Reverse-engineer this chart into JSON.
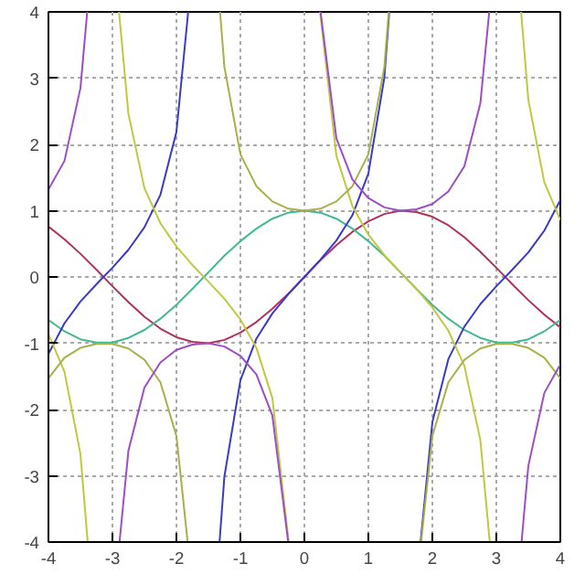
{
  "chart_data": {
    "type": "line",
    "xlim": [
      -4,
      4
    ],
    "ylim": [
      -4,
      4
    ],
    "xticks": [
      -4,
      -3,
      -2,
      -1,
      0,
      1,
      2,
      3,
      4
    ],
    "yticks": [
      -4,
      -3,
      -2,
      -1,
      0,
      1,
      2,
      3,
      4
    ],
    "grid": true,
    "line_style": "solid",
    "marker": "none",
    "series": [
      {
        "color": "#b03060",
        "x": [
          -4,
          -3.75,
          -3.5,
          -3.25,
          -3,
          -2.75,
          -2.5,
          -2.25,
          -2,
          -1.75,
          -1.5,
          -1.25,
          -1,
          -0.75,
          -0.5,
          -0.25,
          0,
          0.25,
          0.5,
          0.75,
          1,
          1.25,
          1.5,
          1.75,
          2,
          2.25,
          2.5,
          2.75,
          3,
          3.25,
          3.5,
          3.75,
          4
        ],
        "values": [
          0.76,
          0.57,
          0.35,
          0.11,
          -0.14,
          -0.38,
          -0.6,
          -0.78,
          -0.91,
          -0.98,
          -1.0,
          -0.95,
          -0.84,
          -0.68,
          -0.48,
          -0.25,
          0,
          0.25,
          0.48,
          0.68,
          0.84,
          0.95,
          1.0,
          0.98,
          0.91,
          0.78,
          0.6,
          0.38,
          0.14,
          -0.11,
          -0.35,
          -0.57,
          -0.76
        ]
      },
      {
        "color": "#40b890",
        "x": [
          -4,
          -3.75,
          -3.5,
          -3.25,
          -3,
          -2.75,
          -2.5,
          -2.25,
          -2,
          -1.75,
          -1.5,
          -1.25,
          -1,
          -0.75,
          -0.5,
          -0.25,
          0,
          0.25,
          0.5,
          0.75,
          1,
          1.25,
          1.5,
          1.75,
          2,
          2.25,
          2.5,
          2.75,
          3,
          3.25,
          3.5,
          3.75,
          4
        ],
        "values": [
          -0.65,
          -0.82,
          -0.94,
          -0.99,
          -0.99,
          -0.92,
          -0.8,
          -0.63,
          -0.42,
          -0.18,
          0.07,
          0.32,
          0.54,
          0.73,
          0.88,
          0.97,
          1,
          0.97,
          0.88,
          0.73,
          0.54,
          0.32,
          0.07,
          -0.18,
          -0.42,
          -0.63,
          -0.8,
          -0.92,
          -0.99,
          -0.99,
          -0.94,
          -0.82,
          -0.65
        ]
      },
      {
        "color": "#3a3ac8",
        "x": [
          -4,
          -3.75,
          -3.5,
          -3.25,
          -3,
          -2.75,
          -2.5,
          -2.25,
          -2,
          -1.816,
          -1.57,
          -1.326,
          -1.25,
          -1,
          -0.75,
          -0.5,
          -0.25,
          0,
          0.25,
          0.5,
          0.75,
          1,
          1.25,
          1.326,
          1.57,
          1.816,
          2,
          2.25,
          2.5,
          2.75,
          3,
          3.25,
          3.5,
          3.75,
          4
        ],
        "values": [
          -1.16,
          -0.7,
          -0.37,
          -0.11,
          0.14,
          0.41,
          0.75,
          1.24,
          2.19,
          4,
          null,
          -4,
          -3.01,
          -1.56,
          -0.93,
          -0.55,
          -0.26,
          0,
          0.26,
          0.55,
          0.93,
          1.56,
          3.01,
          4,
          null,
          -4,
          -2.19,
          -1.24,
          -0.75,
          -0.41,
          -0.14,
          0.11,
          0.37,
          0.7,
          1.16
        ]
      },
      {
        "color": "#c0c840",
        "x": [
          -4,
          -3.75,
          -3.5,
          -3.387,
          -3.14,
          -2.897,
          -2.75,
          -2.5,
          -2.25,
          -2,
          -1.75,
          -1.5,
          -1.25,
          -1,
          -0.75,
          -0.5,
          -0.245,
          0,
          0.245,
          0.5,
          0.75,
          1,
          1.25,
          1.5,
          1.75,
          2,
          2.25,
          2.5,
          2.75,
          2.897,
          3.14,
          3.387,
          3.5,
          3.75,
          4
        ],
        "values": [
          -0.86,
          -1.43,
          -2.67,
          -4,
          null,
          4,
          2.46,
          1.34,
          0.81,
          0.46,
          0.18,
          -0.07,
          -0.33,
          -0.64,
          -1.07,
          -1.83,
          -4,
          null,
          4,
          1.83,
          1.07,
          0.64,
          0.33,
          0.07,
          -0.18,
          -0.46,
          -0.81,
          -1.34,
          -2.46,
          -4,
          null,
          4,
          2.67,
          1.43,
          0.86
        ]
      },
      {
        "color": "#a8b048",
        "x": [
          -4,
          -3.75,
          -3.5,
          -3.25,
          -3,
          -2.75,
          -2.5,
          -2.25,
          -2,
          -1.824,
          -1.57,
          -1.318,
          -1.25,
          -1,
          -0.75,
          -0.5,
          -0.25,
          0,
          0.25,
          0.5,
          0.75,
          1,
          1.25,
          1.318,
          1.57,
          1.824,
          2,
          2.25,
          2.5,
          2.75,
          3,
          3.25,
          3.5,
          3.75,
          4
        ],
        "values": [
          -1.53,
          -1.22,
          -1.07,
          -1.01,
          -1.01,
          -1.08,
          -1.25,
          -1.59,
          -2.4,
          -4,
          null,
          4,
          3.17,
          1.85,
          1.37,
          1.14,
          1.03,
          1,
          1.03,
          1.14,
          1.37,
          1.85,
          3.17,
          4,
          null,
          -4,
          -2.4,
          -1.59,
          -1.25,
          -1.08,
          -1.01,
          -1.01,
          -1.07,
          -1.22,
          -1.53
        ]
      },
      {
        "color": "#9a4fc8",
        "x": [
          -4,
          -3.75,
          -3.5,
          -3.394,
          -3.14,
          -2.889,
          -2.75,
          -2.5,
          -2.25,
          -2,
          -1.75,
          -1.5,
          -1.25,
          -1,
          -0.75,
          -0.5,
          -0.253,
          0,
          0.253,
          0.5,
          0.75,
          1,
          1.25,
          1.5,
          1.75,
          2,
          2.25,
          2.5,
          2.75,
          2.889,
          3.14,
          3.394,
          3.5,
          3.75,
          4
        ],
        "values": [
          1.32,
          1.75,
          2.85,
          4,
          null,
          -4,
          -2.62,
          -1.67,
          -1.29,
          -1.1,
          -1.02,
          -1.0,
          -1.05,
          -1.19,
          -1.47,
          -2.09,
          -4,
          null,
          4,
          2.09,
          1.47,
          1.19,
          1.05,
          1.0,
          1.02,
          1.1,
          1.29,
          1.67,
          2.62,
          4,
          null,
          -4,
          -2.85,
          -1.75,
          -1.32
        ]
      }
    ]
  }
}
